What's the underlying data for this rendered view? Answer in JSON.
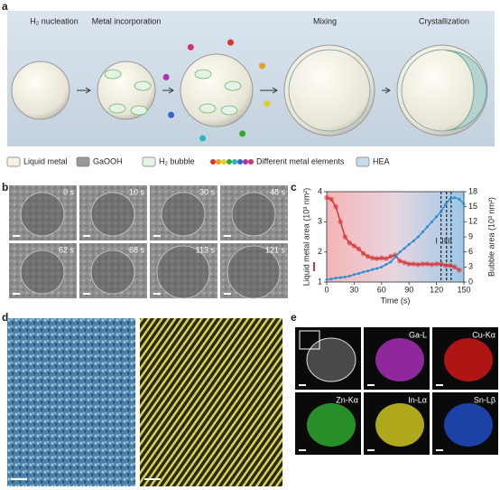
{
  "panel_labels": [
    "a",
    "b",
    "c",
    "d",
    "e"
  ],
  "panel_a": {
    "stages": [
      "H₂ nucleation",
      "Metal incorporation",
      "Mixing",
      "Crystallization"
    ],
    "legend": [
      "Liquid metal",
      "GaOOH",
      "H₂ bubble",
      "Different metal elements",
      "HEA"
    ]
  },
  "panel_b": {
    "times": [
      "0 s",
      "10 s",
      "30 s",
      "48 s",
      "62 s",
      "68 s",
      "113 s",
      "121 s"
    ]
  },
  "chart_data": {
    "type": "line",
    "xlabel": "Time (s)",
    "x": [
      0,
      5,
      10,
      15,
      20,
      25,
      30,
      35,
      40,
      45,
      50,
      55,
      60,
      65,
      70,
      75,
      80,
      85,
      90,
      95,
      100,
      105,
      110,
      115,
      120,
      125,
      130,
      135,
      140,
      145,
      150
    ],
    "series": [
      {
        "name": "Liquid metal area (10³ nm²)",
        "color": "#d6333b",
        "values": [
          3.8,
          3.75,
          3.5,
          3.0,
          2.5,
          2.3,
          2.2,
          2.1,
          1.95,
          1.85,
          1.8,
          1.78,
          1.8,
          1.78,
          1.85,
          1.9,
          1.7,
          1.65,
          1.6,
          1.6,
          1.58,
          1.6,
          1.6,
          1.58,
          1.6,
          1.6,
          1.55,
          1.55,
          1.5,
          1.4,
          null
        ]
      },
      {
        "name": "Bubble area (10³ nm²)",
        "color": "#2b8fd0",
        "axis": "y2",
        "values": [
          0.5,
          0.6,
          0.8,
          0.9,
          1.0,
          1.2,
          1.5,
          1.7,
          2.0,
          2.2,
          2.5,
          2.7,
          3.0,
          3.5,
          4.0,
          5.0,
          6.0,
          6.7,
          7.5,
          8.2,
          9.0,
          10.0,
          11.0,
          12.0,
          13.0,
          14.0,
          15.5,
          16.5,
          16.8,
          16.5,
          15.5
        ]
      }
    ],
    "xlim": [
      0,
      150
    ],
    "xticks": [
      0,
      30,
      60,
      90,
      120,
      150
    ],
    "ylim": [
      1,
      4
    ],
    "yticks": [
      1,
      2,
      3,
      4
    ],
    "y2lim": [
      0,
      18
    ],
    "y2ticks": [
      0,
      3,
      6,
      9,
      12,
      15,
      18
    ],
    "dividers": [
      125,
      131,
      136
    ],
    "region_labels": [
      "I",
      "II",
      "III"
    ]
  },
  "panel_e": {
    "maps": [
      "Ga-L",
      "Cu-Kα",
      "Zn-Kα",
      "In-Lα",
      "Sn-Lβ"
    ]
  }
}
